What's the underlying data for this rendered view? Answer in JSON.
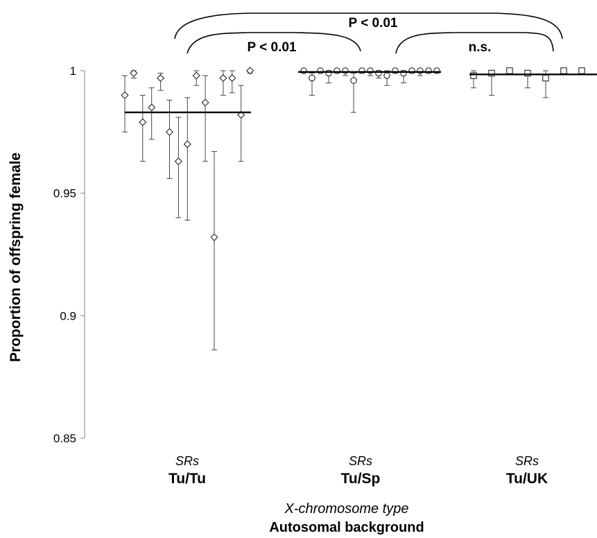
{
  "chart_data": {
    "type": "scatter",
    "ylabel": "Proportion of offspring  female",
    "ylim": [
      0.85,
      1.0
    ],
    "yticks": [
      {
        "value": 0.85,
        "label": "0.85"
      },
      {
        "value": 0.9,
        "label": "0.9"
      },
      {
        "value": 0.95,
        "label": "0.95"
      },
      {
        "value": 1.0,
        "label": "1"
      }
    ],
    "xlabel_line1": "X-chromosome type",
    "xlabel_line2": "Autosomal background",
    "grid": false,
    "groups": [
      {
        "x_type": "SRs",
        "background": "Tu/Tu",
        "marker": "diamond",
        "mean": 0.983,
        "points": [
          {
            "y": 0.99,
            "lo": 0.975,
            "hi": 0.998
          },
          {
            "y": 0.999,
            "lo": 0.997,
            "hi": 1.0
          },
          {
            "y": 0.979,
            "lo": 0.963,
            "hi": 0.99
          },
          {
            "y": 0.985,
            "lo": 0.972,
            "hi": 0.993
          },
          {
            "y": 0.997,
            "lo": 0.992,
            "hi": 0.999
          },
          {
            "y": 0.975,
            "lo": 0.956,
            "hi": 0.988
          },
          {
            "y": 0.963,
            "lo": 0.94,
            "hi": 0.981
          },
          {
            "y": 0.97,
            "lo": 0.939,
            "hi": 0.989
          },
          {
            "y": 0.998,
            "lo": 0.994,
            "hi": 1.0
          },
          {
            "y": 0.987,
            "lo": 0.963,
            "hi": 0.998
          },
          {
            "y": 0.932,
            "lo": 0.886,
            "hi": 0.967
          },
          {
            "y": 0.997,
            "lo": 0.99,
            "hi": 1.0
          },
          {
            "y": 0.997,
            "lo": 0.991,
            "hi": 1.0
          },
          {
            "y": 0.982,
            "lo": 0.963,
            "hi": 0.994
          },
          {
            "y": 1.0,
            "lo": 0.999,
            "hi": 1.0
          }
        ]
      },
      {
        "x_type": "SRs",
        "background": "Tu/Sp",
        "marker": "circle",
        "mean": 0.9995,
        "points": [
          {
            "y": 1.0,
            "lo": 0.999,
            "hi": 1.0
          },
          {
            "y": 0.997,
            "lo": 0.99,
            "hi": 0.999
          },
          {
            "y": 1.0,
            "lo": 0.999,
            "hi": 1.0
          },
          {
            "y": 0.999,
            "lo": 0.995,
            "hi": 1.0
          },
          {
            "y": 1.0,
            "lo": 0.999,
            "hi": 1.0
          },
          {
            "y": 1.0,
            "lo": 0.998,
            "hi": 1.0
          },
          {
            "y": 0.996,
            "lo": 0.983,
            "hi": 0.999
          },
          {
            "y": 1.0,
            "lo": 0.999,
            "hi": 1.0
          },
          {
            "y": 1.0,
            "lo": 0.998,
            "hi": 1.0
          },
          {
            "y": 0.999,
            "lo": 0.997,
            "hi": 1.0
          },
          {
            "y": 0.998,
            "lo": 0.994,
            "hi": 1.0
          },
          {
            "y": 1.0,
            "lo": 0.999,
            "hi": 1.0
          },
          {
            "y": 0.999,
            "lo": 0.995,
            "hi": 1.0
          },
          {
            "y": 1.0,
            "lo": 0.999,
            "hi": 1.0
          },
          {
            "y": 1.0,
            "lo": 0.998,
            "hi": 1.0
          },
          {
            "y": 1.0,
            "lo": 0.999,
            "hi": 1.0
          },
          {
            "y": 1.0,
            "lo": 0.999,
            "hi": 1.0
          }
        ]
      },
      {
        "x_type": "SRs",
        "background": "Tu/UK",
        "marker": "square",
        "mean": 0.9985,
        "points": [
          {
            "y": 0.998,
            "lo": 0.993,
            "hi": 1.0
          },
          {
            "y": 0.999,
            "lo": 0.99,
            "hi": 1.0
          },
          {
            "y": 1.0,
            "lo": 0.999,
            "hi": 1.0
          },
          {
            "y": 0.999,
            "lo": 0.993,
            "hi": 1.0
          },
          {
            "y": 0.997,
            "lo": 0.989,
            "hi": 1.0
          },
          {
            "y": 1.0,
            "lo": 0.999,
            "hi": 1.0
          },
          {
            "y": 1.0,
            "lo": 0.999,
            "hi": 1.0
          }
        ]
      }
    ],
    "comparisons": [
      {
        "label": "P < 0.01",
        "between": [
          "Tu/Tu",
          "Tu/Sp"
        ]
      },
      {
        "label": "n.s.",
        "between": [
          "Tu/Sp",
          "Tu/UK"
        ]
      },
      {
        "label": "P < 0.01",
        "between": [
          "Tu/Tu",
          "Tu/UK"
        ]
      }
    ]
  }
}
